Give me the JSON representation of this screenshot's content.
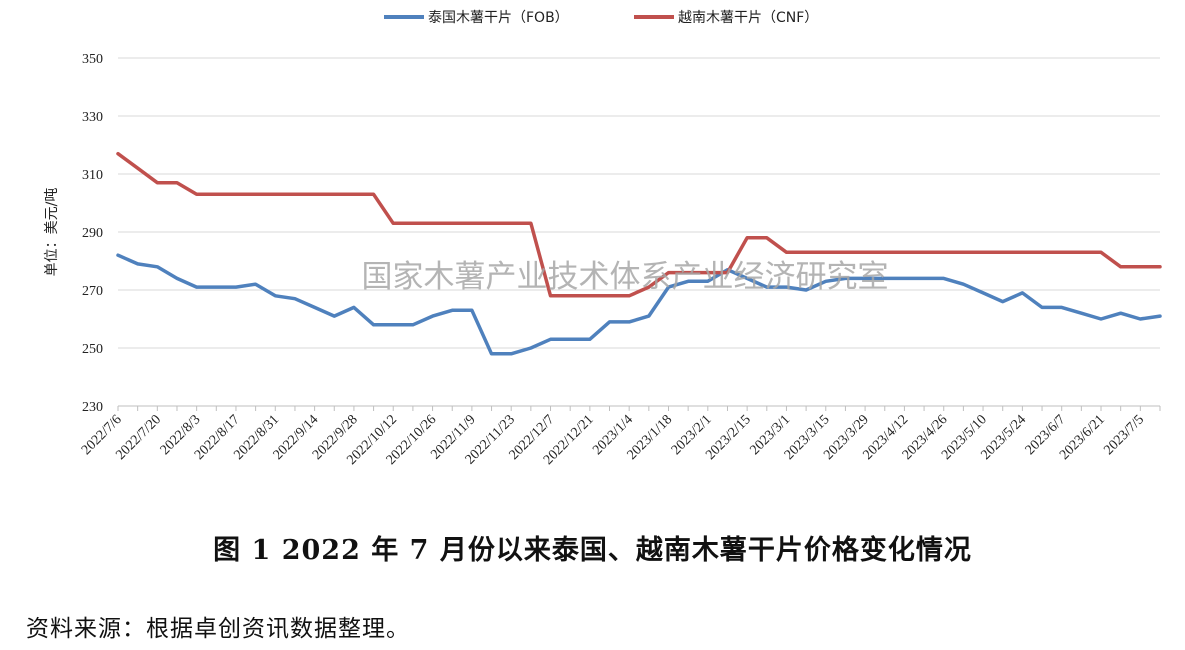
{
  "chart_data": {
    "type": "line",
    "title": "",
    "xlabel": "",
    "ylabel": "单位：美元/吨",
    "ylim": [
      230,
      350
    ],
    "yticks": [
      230,
      250,
      270,
      290,
      310,
      330,
      350
    ],
    "grid": true,
    "legend": "top-center",
    "x": [
      "2022/7/6",
      "2022/7/13",
      "2022/7/20",
      "2022/7/27",
      "2022/8/3",
      "2022/8/10",
      "2022/8/17",
      "2022/8/24",
      "2022/8/31",
      "2022/9/7",
      "2022/9/14",
      "2022/9/21",
      "2022/9/28",
      "2022/10/5",
      "2022/10/12",
      "2022/10/19",
      "2022/10/26",
      "2022/11/2",
      "2022/11/9",
      "2022/11/16",
      "2022/11/23",
      "2022/11/30",
      "2022/12/7",
      "2022/12/14",
      "2022/12/21",
      "2022/12/28",
      "2023/1/4",
      "2023/1/11",
      "2023/1/18",
      "2023/1/25",
      "2023/2/1",
      "2023/2/8",
      "2023/2/15",
      "2023/2/22",
      "2023/3/1",
      "2023/3/8",
      "2023/3/15",
      "2023/3/22",
      "2023/3/29",
      "2023/4/5",
      "2023/4/12",
      "2023/4/19",
      "2023/4/26",
      "2023/5/3",
      "2023/5/10",
      "2023/5/17",
      "2023/5/24",
      "2023/5/31",
      "2023/6/7",
      "2023/6/14",
      "2023/6/21",
      "2023/6/28",
      "2023/7/5",
      "2023/7/12"
    ],
    "xtick_labels": [
      "2022/7/6",
      "2022/7/20",
      "2022/8/3",
      "2022/8/17",
      "2022/8/31",
      "2022/9/14",
      "2022/9/28",
      "2022/10/12",
      "2022/10/26",
      "2022/11/9",
      "2022/11/23",
      "2022/12/7",
      "2022/12/21",
      "2023/1/4",
      "2023/1/18",
      "2023/2/1",
      "2023/2/15",
      "2023/3/1",
      "2023/3/15",
      "2023/3/29",
      "2023/4/12",
      "2023/4/26",
      "2023/5/10",
      "2023/5/24",
      "2023/6/7",
      "2023/6/21",
      "2023/7/5"
    ],
    "series": [
      {
        "name": "泰国木薯干片（FOB）",
        "color": "#4f81bd",
        "values": [
          282,
          279,
          278,
          274,
          271,
          271,
          271,
          272,
          268,
          267,
          264,
          261,
          264,
          258,
          258,
          258,
          261,
          263,
          263,
          248,
          248,
          250,
          253,
          253,
          253,
          259,
          259,
          261,
          271,
          273,
          273,
          277,
          274,
          271,
          271,
          270,
          273,
          274,
          274,
          274,
          274,
          274,
          274,
          272,
          269,
          266,
          269,
          264,
          264,
          262,
          260,
          262,
          260,
          261
        ]
      },
      {
        "name": "越南木薯干片（CNF）",
        "color": "#c0504d",
        "values": [
          317,
          312,
          307,
          307,
          303,
          303,
          303,
          303,
          303,
          303,
          303,
          303,
          303,
          303,
          293,
          293,
          293,
          293,
          293,
          293,
          293,
          293,
          268,
          268,
          268,
          268,
          268,
          271,
          276,
          276,
          276,
          276,
          288,
          288,
          283,
          283,
          283,
          283,
          283,
          283,
          283,
          283,
          283,
          283,
          283,
          283,
          283,
          283,
          283,
          283,
          283,
          278,
          278,
          278
        ]
      }
    ]
  },
  "watermark": "国家木薯产业技术体系产业经济研究室",
  "caption": "图 1    2022 年 7 月份以来泰国、越南木薯干片价格变化情况",
  "source": "资料来源：根据卓创资讯数据整理。"
}
